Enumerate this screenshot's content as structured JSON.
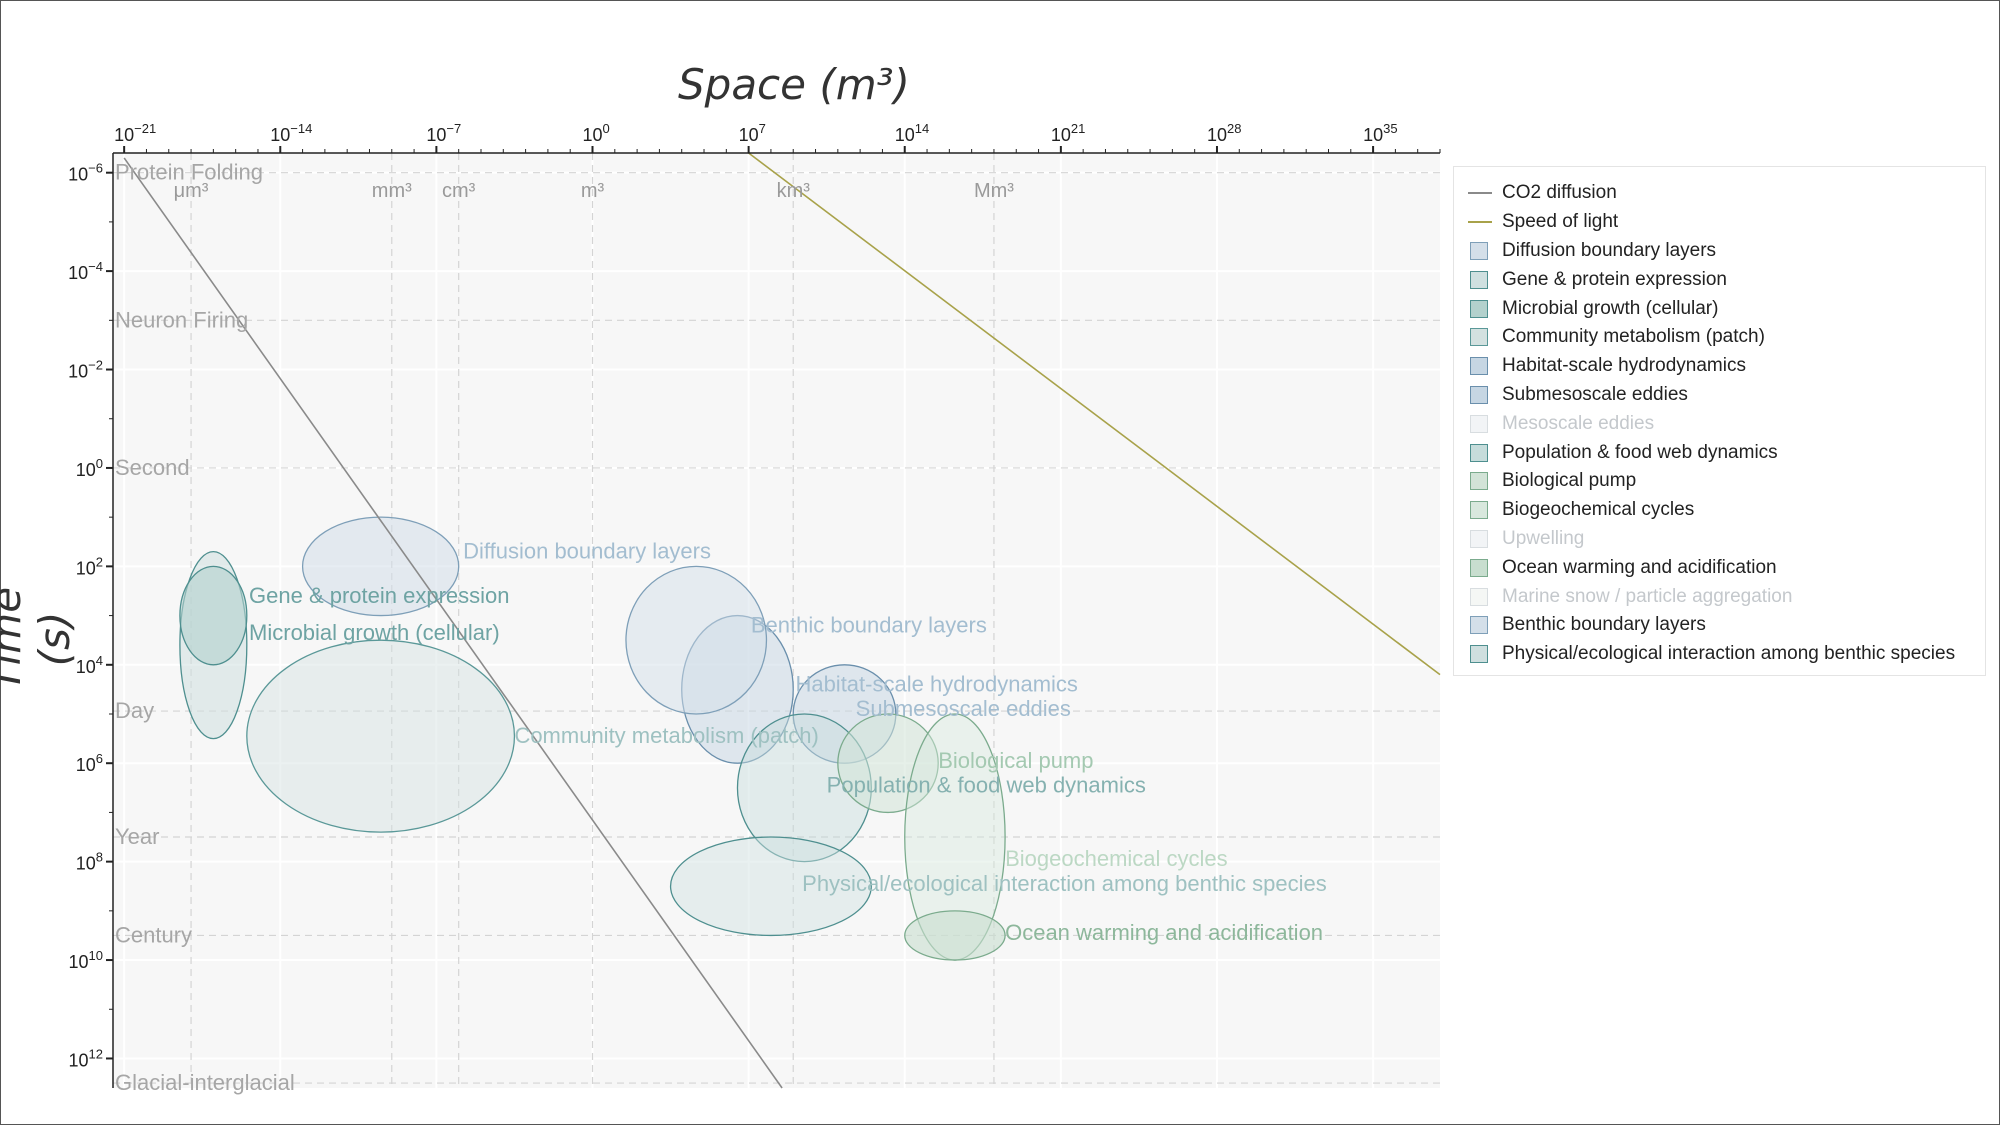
{
  "chart_data": {
    "type": "scatter",
    "title": "",
    "xlabel": "Space (m³)",
    "ylabel": "Time (s)",
    "xscale": "log",
    "yscale": "log",
    "xlim_log10": [
      -21.5,
      38
    ],
    "ylim_log10": [
      -6.4,
      12.6
    ],
    "x_ticks": [
      {
        "exp": -21,
        "label": "10−21"
      },
      {
        "exp": -14,
        "label": "10−14"
      },
      {
        "exp": -7,
        "label": "10−7"
      },
      {
        "exp": 0,
        "label": "100"
      },
      {
        "exp": 7,
        "label": "107"
      },
      {
        "exp": 14,
        "label": "1014"
      },
      {
        "exp": 21,
        "label": "1021"
      },
      {
        "exp": 28,
        "label": "1028"
      },
      {
        "exp": 35,
        "label": "1035"
      }
    ],
    "y_ticks": [
      {
        "exp": -6,
        "label": "10−6"
      },
      {
        "exp": -4,
        "label": "10−4"
      },
      {
        "exp": -2,
        "label": "10−2"
      },
      {
        "exp": 0,
        "label": "100"
      },
      {
        "exp": 2,
        "label": "102"
      },
      {
        "exp": 4,
        "label": "104"
      },
      {
        "exp": 6,
        "label": "106"
      },
      {
        "exp": 8,
        "label": "108"
      },
      {
        "exp": 10,
        "label": "1010"
      },
      {
        "exp": 12,
        "label": "1012"
      }
    ],
    "space_markers": [
      {
        "label": "μm³",
        "log10": -18
      },
      {
        "label": "mm³",
        "log10": -9
      },
      {
        "label": "cm³",
        "log10": -6
      },
      {
        "label": "m³",
        "log10": 0
      },
      {
        "label": "km³",
        "log10": 9
      },
      {
        "label": "Mm³",
        "log10": 18
      }
    ],
    "time_markers": [
      {
        "label": "Protein Folding",
        "log10": -6
      },
      {
        "label": "Neuron Firing",
        "log10": -3
      },
      {
        "label": "Second",
        "log10": 0
      },
      {
        "label": "Day",
        "log10": 4.94
      },
      {
        "label": "Year",
        "log10": 7.5
      },
      {
        "label": "Century",
        "log10": 9.5
      },
      {
        "label": "Glacial-interglacial",
        "log10": 12.5
      }
    ],
    "lines": [
      {
        "name": "CO2 diffusion",
        "color": "#8a8a8a",
        "x_log10": [
          -21,
          8.5
        ],
        "y_log10": [
          -6.3,
          12.6
        ]
      },
      {
        "name": "Speed of light",
        "color": "#a8a24a",
        "x_log10": [
          7,
          38
        ],
        "y_log10": [
          -6.4,
          4.2
        ]
      }
    ],
    "regions": [
      {
        "name": "Diffusion boundary layers",
        "x_log10": [
          -13,
          -6
        ],
        "y_log10": [
          1,
          3
        ],
        "fill": "#d4dfe9",
        "stroke": "#7e9fb8",
        "fill_opacity": 0.55,
        "label_color": "#a3bdd0"
      },
      {
        "name": "Gene & protein expression",
        "x_log10": [
          -18.5,
          -15.5
        ],
        "y_log10": [
          1.7,
          5.5
        ],
        "fill": "#cfe0e0",
        "stroke": "#4e8f8f",
        "fill_opacity": 0.55,
        "label_color": "#6ea3a3"
      },
      {
        "name": "Microbial growth (cellular)",
        "x_log10": [
          -18.5,
          -15.5
        ],
        "y_log10": [
          2,
          4
        ],
        "fill": "#b3d1cd",
        "stroke": "#4e8f8f",
        "fill_opacity": 0.6,
        "label_color": "#6ea3a3"
      },
      {
        "name": "Community metabolism (patch)",
        "x_log10": [
          -15.5,
          -3.5
        ],
        "y_log10": [
          3.5,
          7.4
        ],
        "fill": "#d3e1e0",
        "stroke": "#5a9898",
        "fill_opacity": 0.45,
        "label_color": "#9ec1c1"
      },
      {
        "name": "Habitat-scale hydrodynamics",
        "x_log10": [
          4,
          9
        ],
        "y_log10": [
          3,
          6
        ],
        "fill": "#c6d6e3",
        "stroke": "#6a8fac",
        "fill_opacity": 0.5,
        "label_color": "#a3bdd0"
      },
      {
        "name": "Submesoscale eddies",
        "x_log10": [
          9,
          13.6
        ],
        "y_log10": [
          4,
          6
        ],
        "fill": "#c6d6e3",
        "stroke": "#6a8fac",
        "fill_opacity": 0.5,
        "label_color": "#a3bdd0"
      },
      {
        "name": "Mesoscale eddies",
        "x_log10": [
          0,
          0
        ],
        "y_log10": [
          0,
          0
        ],
        "fill": "#f2f4f6",
        "stroke": "#e8ecee",
        "fill_opacity": 0.0,
        "label_color": "#c8d0d6",
        "hidden": true
      },
      {
        "name": "Population & food web dynamics",
        "x_log10": [
          6.5,
          12.5
        ],
        "y_log10": [
          5,
          8
        ],
        "fill": "#c6dcdb",
        "stroke": "#4e8f8f",
        "fill_opacity": 0.45,
        "label_color": "#85b1b0"
      },
      {
        "name": "Biological pump",
        "x_log10": [
          11,
          15.5
        ],
        "y_log10": [
          5,
          7
        ],
        "fill": "#d2e3d7",
        "stroke": "#7bab8d",
        "fill_opacity": 0.55,
        "label_color": "#a4c9b1"
      },
      {
        "name": "Biogeochemical cycles",
        "x_log10": [
          14,
          18.5
        ],
        "y_log10": [
          5,
          10
        ],
        "fill": "#d8e8dd",
        "stroke": "#7bab8d",
        "fill_opacity": 0.45,
        "label_color": "#bcd8c4"
      },
      {
        "name": "Upwelling",
        "x_log10": [
          0,
          0
        ],
        "y_log10": [
          0,
          0
        ],
        "fill": "#f2f4f6",
        "stroke": "#e8ecee",
        "fill_opacity": 0.0,
        "label_color": "#c8d0d6",
        "hidden": true
      },
      {
        "name": "Ocean warming and acidification",
        "x_log10": [
          14,
          18.5
        ],
        "y_log10": [
          9,
          10
        ],
        "fill": "#c8decf",
        "stroke": "#7bab8d",
        "fill_opacity": 0.6,
        "label_color": "#8db79b"
      },
      {
        "name": "Marine snow / particle aggregation",
        "x_log10": [
          0,
          0
        ],
        "y_log10": [
          0,
          0
        ],
        "fill": "#f5f7f5",
        "stroke": "#eceeee",
        "fill_opacity": 0.0,
        "label_color": "#d0d6d2",
        "hidden": true
      },
      {
        "name": "Benthic boundary layers",
        "x_log10": [
          1.5,
          7.8
        ],
        "y_log10": [
          2,
          5
        ],
        "fill": "#d4dfe9",
        "stroke": "#7e9fb8",
        "fill_opacity": 0.5,
        "label_color": "#a3bdd0"
      },
      {
        "name": "Physical/ecological interaction among benthic species",
        "x_log10": [
          3.5,
          12.5
        ],
        "y_log10": [
          7.5,
          9.5
        ],
        "fill": "#cfdfdf",
        "stroke": "#4e8f8f",
        "fill_opacity": 0.45,
        "label_color": "#9ec1c1"
      }
    ]
  }
}
